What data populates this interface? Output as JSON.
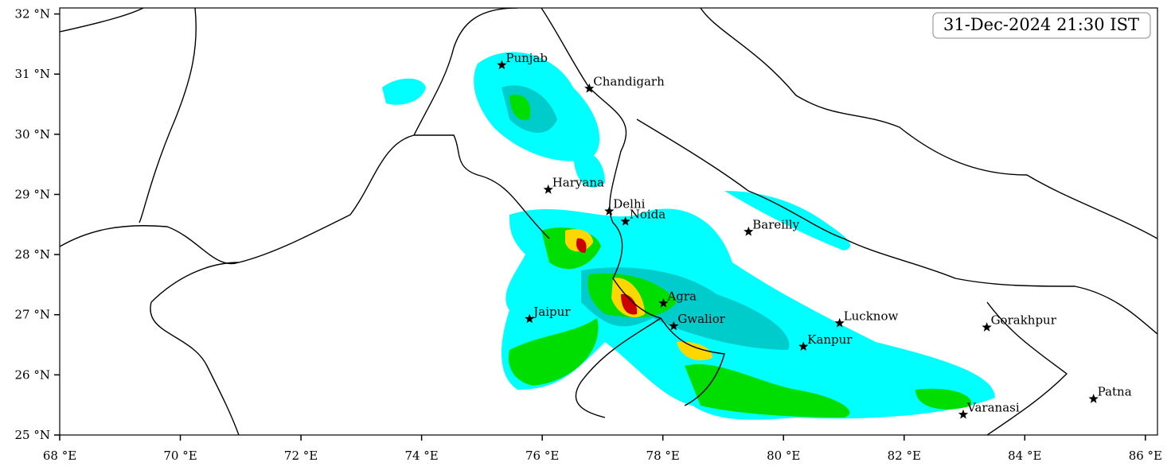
{
  "title": "31-Dec-2024 21:30 IST",
  "map": {
    "xlim": [
      68,
      86.2
    ],
    "ylim": [
      25,
      32.1
    ],
    "xticks": [
      {
        "value": 68,
        "label": "68 °E"
      },
      {
        "value": 70,
        "label": "70 °E"
      },
      {
        "value": 72,
        "label": "72 °E"
      },
      {
        "value": 74,
        "label": "74 °E"
      },
      {
        "value": 76,
        "label": "76 °E"
      },
      {
        "value": 78,
        "label": "78 °E"
      },
      {
        "value": 80,
        "label": "80 °E"
      },
      {
        "value": 82,
        "label": "82 °E"
      },
      {
        "value": 84,
        "label": "84 °E"
      },
      {
        "value": 86,
        "label": "86 °E"
      }
    ],
    "yticks": [
      {
        "value": 25,
        "label": "25 °N"
      },
      {
        "value": 26,
        "label": "26 °N"
      },
      {
        "value": 27,
        "label": "27 °N"
      },
      {
        "value": 28,
        "label": "28 °N"
      },
      {
        "value": 29,
        "label": "29 °N"
      },
      {
        "value": 30,
        "label": "30 °N"
      },
      {
        "value": 31,
        "label": "31 °N"
      },
      {
        "value": 32,
        "label": "32 °N"
      }
    ],
    "cities": [
      {
        "name": "Punjab",
        "lon": 75.33,
        "lat": 31.15
      },
      {
        "name": "Chandigarh",
        "lon": 76.78,
        "lat": 30.76
      },
      {
        "name": "Haryana",
        "lon": 76.1,
        "lat": 29.08
      },
      {
        "name": "Delhi",
        "lon": 77.11,
        "lat": 28.72
      },
      {
        "name": "Noida",
        "lon": 77.38,
        "lat": 28.55
      },
      {
        "name": "Bareilly",
        "lon": 79.42,
        "lat": 28.38
      },
      {
        "name": "Agra",
        "lon": 78.01,
        "lat": 27.19
      },
      {
        "name": "Jaipur",
        "lon": 75.79,
        "lat": 26.93
      },
      {
        "name": "Gwalior",
        "lon": 78.18,
        "lat": 26.81
      },
      {
        "name": "Lucknow",
        "lon": 80.93,
        "lat": 26.86
      },
      {
        "name": "Kanpur",
        "lon": 80.33,
        "lat": 26.47
      },
      {
        "name": "Gorakhpur",
        "lon": 83.37,
        "lat": 26.79
      },
      {
        "name": "Varanasi",
        "lon": 82.98,
        "lat": 25.34
      },
      {
        "name": "Patna",
        "lon": 85.14,
        "lat": 25.6
      }
    ]
  }
}
